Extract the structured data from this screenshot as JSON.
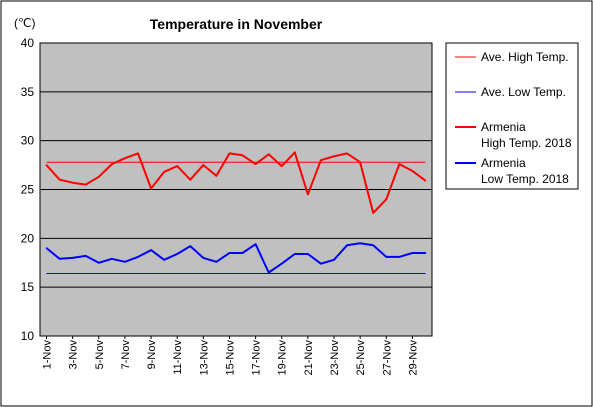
{
  "chart_data": {
    "type": "line",
    "title": "Temperature in November",
    "unit_label": "(℃)",
    "ylim": [
      10,
      40
    ],
    "yticks": [
      10,
      15,
      20,
      25,
      30,
      35,
      40
    ],
    "grid": true,
    "legend_position": "right",
    "x": [
      "1-Nov",
      "2-Nov",
      "3-Nov",
      "4-Nov",
      "5-Nov",
      "6-Nov",
      "7-Nov",
      "8-Nov",
      "9-Nov",
      "10-Nov",
      "11-Nov",
      "12-Nov",
      "13-Nov",
      "14-Nov",
      "15-Nov",
      "16-Nov",
      "17-Nov",
      "18-Nov",
      "19-Nov",
      "20-Nov",
      "21-Nov",
      "22-Nov",
      "23-Nov",
      "24-Nov",
      "25-Nov",
      "26-Nov",
      "27-Nov",
      "28-Nov",
      "29-Nov",
      "30-Nov"
    ],
    "x_tick_labels": [
      "1-Nov",
      "3-Nov",
      "5-Nov",
      "7-Nov",
      "9-Nov",
      "11-Nov",
      "13-Nov",
      "15-Nov",
      "17-Nov",
      "19-Nov",
      "21-Nov",
      "23-Nov",
      "25-Nov",
      "27-Nov",
      "29-Nov"
    ],
    "x_tick_indices": [
      0,
      2,
      4,
      6,
      8,
      10,
      12,
      14,
      16,
      18,
      20,
      22,
      24,
      26,
      28
    ],
    "series": [
      {
        "name": "Ave. High Temp.",
        "color": "#ff0000",
        "width": 1,
        "values": [
          27.8,
          27.8,
          27.8,
          27.8,
          27.8,
          27.8,
          27.8,
          27.8,
          27.8,
          27.8,
          27.8,
          27.8,
          27.8,
          27.8,
          27.8,
          27.8,
          27.8,
          27.8,
          27.8,
          27.8,
          27.8,
          27.8,
          27.8,
          27.8,
          27.8,
          27.8,
          27.8,
          27.8,
          27.8,
          27.8
        ]
      },
      {
        "name": "Ave. Low Temp.",
        "color": "#0000ff",
        "width": 1,
        "values": [
          16.4,
          16.4,
          16.4,
          16.4,
          16.4,
          16.4,
          16.4,
          16.4,
          16.4,
          16.4,
          16.4,
          16.4,
          16.4,
          16.4,
          16.4,
          16.4,
          16.4,
          16.4,
          16.4,
          16.4,
          16.4,
          16.4,
          16.4,
          16.4,
          16.4,
          16.4,
          16.4,
          16.4,
          16.4,
          16.4
        ]
      },
      {
        "name_lines": [
          "Armenia",
          "High Temp. 2018"
        ],
        "color": "#ff0000",
        "width": 2,
        "values": [
          27.5,
          26.0,
          25.7,
          25.5,
          26.3,
          27.6,
          28.2,
          28.7,
          25.1,
          26.8,
          27.4,
          26.0,
          27.5,
          26.4,
          28.7,
          28.5,
          27.6,
          28.6,
          27.4,
          28.8,
          24.5,
          28.0,
          28.4,
          28.7,
          27.8,
          22.6,
          24.0,
          27.6,
          26.9,
          25.9
        ]
      },
      {
        "name_lines": [
          "Armenia",
          "Low Temp. 2018"
        ],
        "color": "#0000ff",
        "width": 2,
        "values": [
          19.0,
          17.9,
          18.0,
          18.2,
          17.5,
          17.9,
          17.6,
          18.1,
          18.8,
          17.8,
          18.4,
          19.2,
          18.0,
          17.6,
          18.5,
          18.5,
          19.4,
          16.5,
          17.4,
          18.4,
          18.4,
          17.4,
          17.8,
          19.3,
          19.5,
          19.3,
          18.1,
          18.1,
          18.5,
          18.5
        ]
      }
    ]
  }
}
